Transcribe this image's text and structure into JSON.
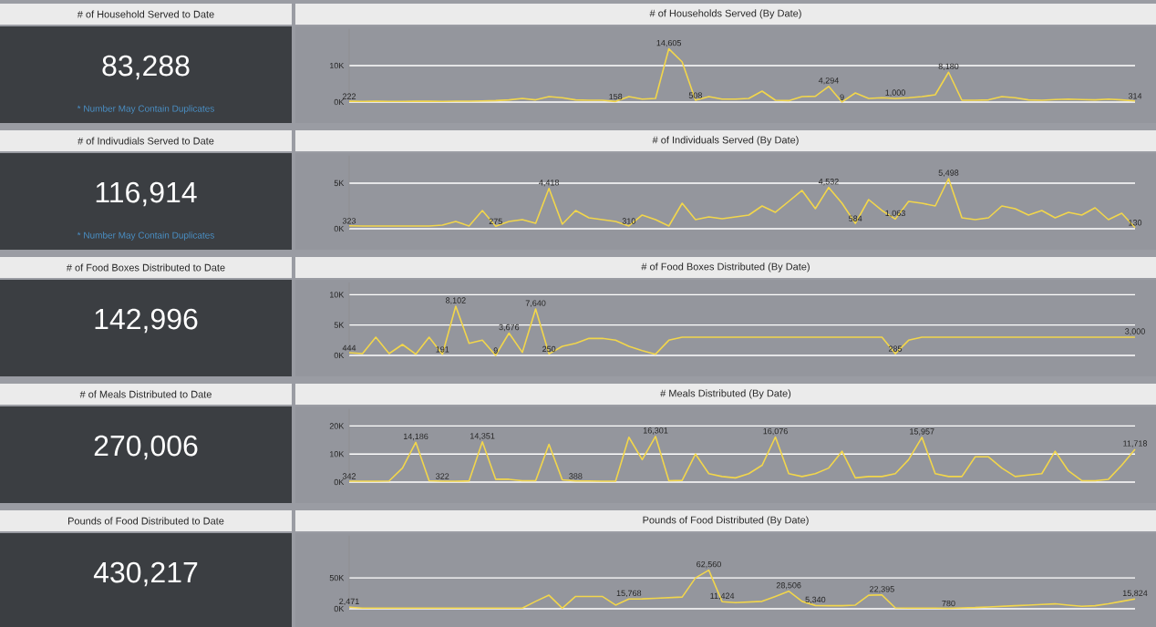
{
  "chart_data": [
    {
      "type": "other",
      "title": "# of Household Served to Date",
      "annotations": [
        "83,288",
        "* Number May Contain Duplicates"
      ]
    },
    {
      "type": "line",
      "title": "# of Households Served (By Date)",
      "color": "#f2d64b",
      "grid": "y",
      "tick_labels": "y",
      "ylim": [
        0,
        20000
      ],
      "yticks": [
        {
          "value": 0,
          "label": "0K"
        },
        {
          "value": 10000,
          "label": "10K"
        }
      ],
      "categories": [
        null,
        null,
        null,
        null,
        null,
        null,
        null,
        null,
        null,
        null,
        null,
        null,
        null,
        null,
        null,
        null,
        null,
        null,
        null,
        null,
        null,
        null,
        null,
        null,
        null,
        null,
        null,
        null,
        null,
        null,
        null,
        null,
        null,
        null,
        null,
        null,
        null,
        null,
        null,
        null,
        null,
        null,
        null,
        null,
        null,
        null,
        null,
        null,
        null,
        null,
        null,
        null,
        null,
        null,
        null,
        null,
        null,
        null,
        null,
        null
      ],
      "values": [
        222,
        200,
        210,
        190,
        200,
        220,
        210,
        200,
        230,
        250,
        300,
        400,
        600,
        1000,
        600,
        1500,
        1200,
        600,
        500,
        500,
        158,
        1500,
        800,
        1000,
        14605,
        11000,
        508,
        1500,
        800,
        800,
        1000,
        3000,
        500,
        400,
        1500,
        1600,
        4294,
        9,
        2500,
        1000,
        1200,
        1000,
        1200,
        1500,
        2000,
        8180,
        500,
        500,
        600,
        1500,
        1200,
        600,
        500,
        700,
        800,
        700,
        600,
        800,
        600,
        314
      ],
      "value_labels": [
        "222",
        null,
        null,
        null,
        null,
        null,
        null,
        null,
        null,
        null,
        null,
        null,
        null,
        null,
        null,
        null,
        null,
        null,
        null,
        null,
        "158",
        null,
        null,
        null,
        "14,605",
        null,
        "508",
        null,
        null,
        null,
        null,
        null,
        null,
        null,
        null,
        null,
        "4,294",
        "9",
        null,
        null,
        null,
        "1,000",
        null,
        null,
        null,
        "8,180",
        null,
        null,
        null,
        null,
        null,
        null,
        null,
        null,
        null,
        null,
        null,
        null,
        null,
        "314"
      ]
    },
    {
      "type": "other",
      "title": "# of Indivudials Served to Date",
      "annotations": [
        "116,914",
        "* Number May Contain Duplicates"
      ]
    },
    {
      "type": "line",
      "title": "# of Individuals Served (By Date)",
      "color": "#f2d64b",
      "grid": "y",
      "tick_labels": "y",
      "ylim": [
        0,
        8000
      ],
      "yticks": [
        {
          "value": 0,
          "label": "0K"
        },
        {
          "value": 5000,
          "label": "5K"
        }
      ],
      "categories": [
        null,
        null,
        null,
        null,
        null,
        null,
        null,
        null,
        null,
        null,
        null,
        null,
        null,
        null,
        null,
        null,
        null,
        null,
        null,
        null,
        null,
        null,
        null,
        null,
        null,
        null,
        null,
        null,
        null,
        null,
        null,
        null,
        null,
        null,
        null,
        null,
        null,
        null,
        null,
        null,
        null,
        null,
        null,
        null,
        null,
        null,
        null,
        null,
        null,
        null,
        null,
        null,
        null,
        null,
        null,
        null,
        null,
        null,
        null,
        null
      ],
      "values": [
        323,
        300,
        300,
        300,
        300,
        300,
        300,
        400,
        800,
        300,
        2000,
        275,
        800,
        1000,
        600,
        4418,
        500,
        2000,
        1200,
        1000,
        800,
        310,
        1500,
        1000,
        300,
        2800,
        1000,
        1300,
        1100,
        1300,
        1500,
        2500,
        1800,
        3000,
        4200,
        2200,
        4532,
        2800,
        584,
        3200,
        2000,
        1063,
        3000,
        2800,
        2500,
        5498,
        1200,
        1000,
        1200,
        2500,
        2200,
        1500,
        2000,
        1200,
        1800,
        1500,
        2300,
        1000,
        1700,
        130
      ],
      "value_labels": [
        "323",
        null,
        null,
        null,
        null,
        null,
        null,
        null,
        null,
        null,
        null,
        "275",
        null,
        null,
        null,
        "4,418",
        null,
        null,
        null,
        null,
        null,
        "310",
        null,
        null,
        null,
        null,
        null,
        null,
        null,
        null,
        null,
        null,
        null,
        null,
        null,
        null,
        "4,532",
        null,
        "584",
        null,
        null,
        "1,063",
        null,
        null,
        null,
        "5,498",
        null,
        null,
        null,
        null,
        null,
        null,
        null,
        null,
        null,
        null,
        null,
        null,
        null,
        "130"
      ]
    },
    {
      "type": "other",
      "title": "# of Food Boxes Distributed to Date",
      "annotations": [
        "142,996"
      ]
    },
    {
      "type": "line",
      "title": "# of Food Boxes Distributed (By Date)",
      "color": "#f2d64b",
      "grid": "y",
      "tick_labels": "y",
      "ylim": [
        0,
        12000
      ],
      "yticks": [
        {
          "value": 0,
          "label": "0K"
        },
        {
          "value": 5000,
          "label": "5K"
        },
        {
          "value": 10000,
          "label": "10K"
        }
      ],
      "categories": [
        null,
        null,
        null,
        null,
        null,
        null,
        null,
        null,
        null,
        null,
        null,
        null,
        null,
        null,
        null,
        null,
        null,
        null,
        null,
        null,
        null,
        null,
        null,
        null,
        null,
        null,
        null,
        null,
        null,
        null,
        null,
        null,
        null,
        null,
        null,
        null,
        null,
        null,
        null,
        null,
        null,
        null,
        null,
        null,
        null,
        null,
        null,
        null,
        null,
        null,
        null,
        null,
        null,
        null,
        null,
        null,
        null,
        null,
        null,
        null
      ],
      "values": [
        444,
        300,
        3000,
        300,
        1800,
        200,
        3000,
        191,
        8102,
        2000,
        2500,
        9,
        3676,
        500,
        7640,
        250,
        1500,
        2000,
        2800,
        2800,
        2500,
        1500,
        800,
        200,
        2500,
        3000,
        3000,
        3000,
        3000,
        3000,
        3000,
        3000,
        3000,
        3000,
        3000,
        3000,
        3000,
        3000,
        3000,
        3000,
        3000,
        285,
        2500,
        3000,
        3000,
        3000,
        3000,
        3000,
        3000,
        3000,
        3000,
        3000,
        3000,
        3000,
        3000,
        3000,
        3000,
        3000,
        3000,
        3000
      ],
      "value_labels": [
        "444",
        null,
        null,
        null,
        null,
        null,
        null,
        "191",
        "8,102",
        null,
        null,
        "9",
        "3,676",
        null,
        "7,640",
        "250",
        null,
        null,
        null,
        null,
        null,
        null,
        null,
        null,
        null,
        null,
        null,
        null,
        null,
        null,
        null,
        null,
        null,
        null,
        null,
        null,
        null,
        null,
        null,
        null,
        null,
        "285",
        null,
        null,
        null,
        null,
        null,
        null,
        null,
        null,
        null,
        null,
        null,
        null,
        null,
        null,
        null,
        null,
        null,
        "3,000"
      ]
    },
    {
      "type": "other",
      "title": "# of Meals Distributed to Date",
      "annotations": [
        "270,006"
      ]
    },
    {
      "type": "line",
      "title": "# Meals Distributed (By Date)",
      "color": "#f2d64b",
      "grid": "y",
      "tick_labels": "y",
      "ylim": [
        0,
        26000
      ],
      "yticks": [
        {
          "value": 0,
          "label": "0K"
        },
        {
          "value": 10000,
          "label": "10K"
        },
        {
          "value": 20000,
          "label": "20K"
        }
      ],
      "categories": [
        null,
        null,
        null,
        null,
        null,
        null,
        null,
        null,
        null,
        null,
        null,
        null,
        null,
        null,
        null,
        null,
        null,
        null,
        null,
        null,
        null,
        null,
        null,
        null,
        null,
        null,
        null,
        null,
        null,
        null,
        null,
        null,
        null,
        null,
        null,
        null,
        null,
        null,
        null,
        null,
        null,
        null,
        null,
        null,
        null,
        null,
        null,
        null,
        null,
        null,
        null,
        null,
        null,
        null,
        null,
        null,
        null,
        null,
        null,
        null
      ],
      "values": [
        342,
        300,
        300,
        400,
        5000,
        14186,
        500,
        322,
        300,
        400,
        14351,
        1000,
        1000,
        500,
        500,
        13500,
        800,
        388,
        400,
        300,
        300,
        16000,
        8000,
        16301,
        500,
        600,
        10000,
        3000,
        2000,
        1500,
        3000,
        6000,
        16076,
        3000,
        2000,
        3000,
        5000,
        11000,
        1500,
        2000,
        2000,
        3000,
        8000,
        15957,
        3000,
        2000,
        2000,
        9000,
        9000,
        5000,
        2000,
        2500,
        3000,
        11000,
        4000,
        500,
        500,
        1000,
        6000,
        11718
      ],
      "value_labels": [
        "342",
        null,
        null,
        null,
        null,
        "14,186",
        null,
        "322",
        null,
        null,
        "14,351",
        null,
        null,
        null,
        null,
        null,
        null,
        "388",
        null,
        null,
        null,
        null,
        null,
        "16,301",
        null,
        null,
        null,
        null,
        null,
        null,
        null,
        null,
        "16,076",
        null,
        null,
        null,
        null,
        null,
        null,
        null,
        null,
        null,
        null,
        "15,957",
        null,
        null,
        null,
        null,
        null,
        null,
        null,
        null,
        null,
        null,
        null,
        null,
        null,
        null,
        null,
        "11,718"
      ]
    },
    {
      "type": "other",
      "title": "Pounds of Food Distributed to Date",
      "annotations": [
        "430,217"
      ]
    },
    {
      "type": "line",
      "title": "Pounds of Food Distributed (By Date)",
      "color": "#f2d64b",
      "grid": "y",
      "tick_labels": "y",
      "ylim": [
        0,
        118000
      ],
      "yticks": [
        {
          "value": 0,
          "label": "0K"
        },
        {
          "value": 50000,
          "label": "50K"
        }
      ],
      "categories": [
        null,
        null,
        null,
        null,
        null,
        null,
        null,
        null,
        null,
        null,
        null,
        null,
        null,
        null,
        null,
        null,
        null,
        null,
        null,
        null,
        null,
        null,
        null,
        null,
        null,
        null,
        null,
        null,
        null,
        null,
        null,
        null,
        null,
        null,
        null,
        null,
        null,
        null,
        null,
        null,
        null,
        null,
        null,
        null,
        null,
        null,
        null,
        null,
        null,
        null,
        null,
        null,
        null,
        null,
        null,
        null,
        null,
        null,
        null,
        null
      ],
      "values": [
        2471,
        1000,
        1000,
        1000,
        1000,
        1000,
        1000,
        1000,
        1000,
        1000,
        1000,
        1000,
        1000,
        1000,
        12000,
        22000,
        1000,
        20000,
        20000,
        20000,
        6000,
        15768,
        16000,
        17000,
        18000,
        19000,
        50000,
        62560,
        11424,
        10000,
        11000,
        12000,
        20000,
        28506,
        12000,
        5340,
        5000,
        5000,
        6000,
        22000,
        22395,
        1500,
        1000,
        1000,
        1000,
        780,
        1500,
        2000,
        3000,
        4000,
        5000,
        6000,
        7000,
        8000,
        6000,
        4000,
        5000,
        8000,
        12000,
        15824
      ],
      "value_labels": [
        "2,471",
        null,
        null,
        null,
        null,
        null,
        null,
        null,
        null,
        null,
        null,
        null,
        null,
        null,
        null,
        null,
        null,
        null,
        null,
        null,
        null,
        "15,768",
        null,
        null,
        null,
        null,
        null,
        "62,560",
        "11,424",
        null,
        null,
        null,
        null,
        "28,506",
        null,
        "5,340",
        null,
        null,
        null,
        null,
        "22,395",
        null,
        null,
        null,
        null,
        "780",
        null,
        null,
        null,
        null,
        null,
        null,
        null,
        null,
        null,
        null,
        null,
        null,
        null,
        "15,824"
      ]
    }
  ]
}
